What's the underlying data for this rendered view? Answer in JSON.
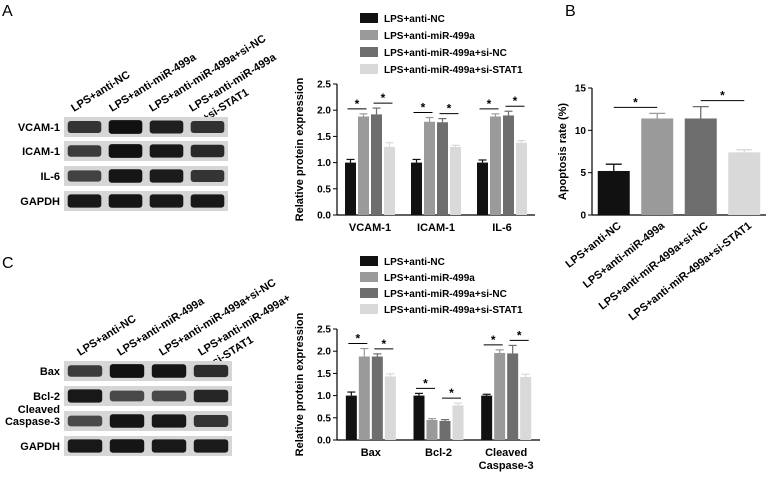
{
  "panels": {
    "A": {
      "letter": "A"
    },
    "B": {
      "letter": "B"
    },
    "C": {
      "letter": "C"
    }
  },
  "blots": [
    {
      "id": "A",
      "lane_labels": [
        "LPS+anti-NC",
        "LPS+anti-miR-499a",
        "LPS+anti-miR-499a+si-NC",
        "LPS+anti-miR-499a",
        "+si-STAT1"
      ],
      "rows": [
        {
          "label": "VCAM-1",
          "intensity": [
            0.7,
            0.95,
            0.85,
            0.72
          ]
        },
        {
          "label": "ICAM-1",
          "intensity": [
            0.65,
            0.95,
            0.9,
            0.78
          ]
        },
        {
          "label": "IL-6",
          "intensity": [
            0.6,
            0.92,
            0.88,
            0.7
          ]
        },
        {
          "label": "GAPDH",
          "intensity": [
            0.9,
            0.92,
            0.9,
            0.9
          ]
        }
      ]
    },
    {
      "id": "C",
      "lane_labels": [
        "LPS+anti-NC",
        "LPS+anti-miR-499a",
        "LPS+anti-miR-499a+si-NC",
        "LPS+anti-miR-499a+",
        "si-STAT1"
      ],
      "rows": [
        {
          "label": "Bax",
          "intensity": [
            0.65,
            0.95,
            0.92,
            0.75
          ]
        },
        {
          "label": "Bcl-2",
          "intensity": [
            0.9,
            0.55,
            0.55,
            0.8
          ]
        },
        {
          "label": "Cleaved",
          "label2": "Caspase-3",
          "intensity": [
            0.55,
            0.92,
            0.9,
            0.7
          ]
        },
        {
          "label": "GAPDH",
          "intensity": [
            0.9,
            0.92,
            0.9,
            0.88
          ]
        }
      ]
    }
  ],
  "chart_data": [
    {
      "id": "A-chart",
      "type": "bar",
      "ylabel": "Relative protein expression",
      "ylim": [
        0,
        2.5
      ],
      "yticks": [
        "0.0",
        "0.5",
        "1.0",
        "1.5",
        "2.0",
        "2.5"
      ],
      "categories": [
        "VCAM-1",
        "ICAM-1",
        "IL-6"
      ],
      "legend": [
        "LPS+anti-NC",
        "LPS+anti-miR-499a",
        "LPS+anti-miR-499a+si-NC",
        "LPS+anti-miR-499a+si-STAT1"
      ],
      "legend_position": "top",
      "series": [
        {
          "name": "LPS+anti-NC",
          "color": "#111111",
          "values": [
            1.0,
            1.0,
            1.0
          ],
          "errors": [
            0.06,
            0.06,
            0.05
          ]
        },
        {
          "name": "LPS+anti-miR-499a",
          "color": "#9a9a9a",
          "values": [
            1.88,
            1.78,
            1.88
          ],
          "errors": [
            0.05,
            0.08,
            0.05
          ]
        },
        {
          "name": "LPS+anti-miR-499a+si-NC",
          "color": "#6e6e6e",
          "values": [
            1.92,
            1.77,
            1.9
          ],
          "errors": [
            0.12,
            0.07,
            0.08
          ]
        },
        {
          "name": "LPS+anti-miR-499a+si-STAT1",
          "color": "#d9d9d9",
          "values": [
            1.3,
            1.3,
            1.38
          ],
          "errors": [
            0.08,
            0.03,
            0.04
          ]
        }
      ],
      "significance": [
        {
          "category": 0,
          "from": 0,
          "to": 1,
          "label": "*"
        },
        {
          "category": 0,
          "from": 2,
          "to": 3,
          "label": "*"
        },
        {
          "category": 1,
          "from": 0,
          "to": 1,
          "label": "*"
        },
        {
          "category": 1,
          "from": 2,
          "to": 3,
          "label": "*"
        },
        {
          "category": 2,
          "from": 0,
          "to": 1,
          "label": "*"
        },
        {
          "category": 2,
          "from": 2,
          "to": 3,
          "label": "*"
        }
      ]
    },
    {
      "id": "B-chart",
      "type": "bar",
      "ylabel": "Apoptosis rate (%)",
      "ylim": [
        0,
        15
      ],
      "yticks": [
        "0",
        "5",
        "10",
        "15"
      ],
      "categories": [
        "LPS+anti-NC",
        "LPS+anti-miR-499a",
        "LPS+anti-miR-499a+si-NC",
        "LPS+anti-miR-499a+si-STAT1"
      ],
      "colors": [
        "#111111",
        "#9a9a9a",
        "#6e6e6e",
        "#d9d9d9"
      ],
      "values": [
        5.2,
        11.4,
        11.4,
        7.4
      ],
      "errors": [
        0.8,
        0.6,
        1.4,
        0.3
      ],
      "significance": [
        {
          "from": 0,
          "to": 1,
          "label": "*"
        },
        {
          "from": 2,
          "to": 3,
          "label": "*"
        }
      ]
    },
    {
      "id": "C-chart",
      "type": "bar",
      "ylabel": "Relative protein expression",
      "ylim": [
        0,
        2.5
      ],
      "yticks": [
        "0.0",
        "0.5",
        "1.0",
        "1.5",
        "2.0",
        "2.5"
      ],
      "categories": [
        "Bax",
        "Bcl-2",
        "Cleaved|Caspase-3"
      ],
      "legend": [
        "LPS+anti-NC",
        "LPS+anti-miR-499a",
        "LPS+anti-miR-499a+si-NC",
        "LPS+anti-miR-499a+si-STAT1"
      ],
      "legend_position": "top",
      "series": [
        {
          "name": "LPS+anti-NC",
          "color": "#111111",
          "values": [
            1.0,
            1.0,
            1.0
          ],
          "errors": [
            0.08,
            0.05,
            0.03
          ]
        },
        {
          "name": "LPS+anti-miR-499a",
          "color": "#9a9a9a",
          "values": [
            1.88,
            0.45,
            1.96
          ],
          "errors": [
            0.18,
            0.03,
            0.07
          ]
        },
        {
          "name": "LPS+anti-miR-499a+si-NC",
          "color": "#6e6e6e",
          "values": [
            1.88,
            0.43,
            1.95
          ],
          "errors": [
            0.06,
            0.03,
            0.18
          ]
        },
        {
          "name": "LPS+anti-miR-499a+si-STAT1",
          "color": "#d9d9d9",
          "values": [
            1.43,
            0.78,
            1.42
          ],
          "errors": [
            0.06,
            0.05,
            0.06
          ]
        }
      ],
      "significance": [
        {
          "category": 0,
          "from": 0,
          "to": 1,
          "label": "*"
        },
        {
          "category": 0,
          "from": 2,
          "to": 3,
          "label": "*"
        },
        {
          "category": 1,
          "from": 0,
          "to": 1,
          "label": "*"
        },
        {
          "category": 1,
          "from": 2,
          "to": 3,
          "label": "*"
        },
        {
          "category": 2,
          "from": 0,
          "to": 1,
          "label": "*"
        },
        {
          "category": 2,
          "from": 2,
          "to": 3,
          "label": "*"
        }
      ]
    }
  ]
}
